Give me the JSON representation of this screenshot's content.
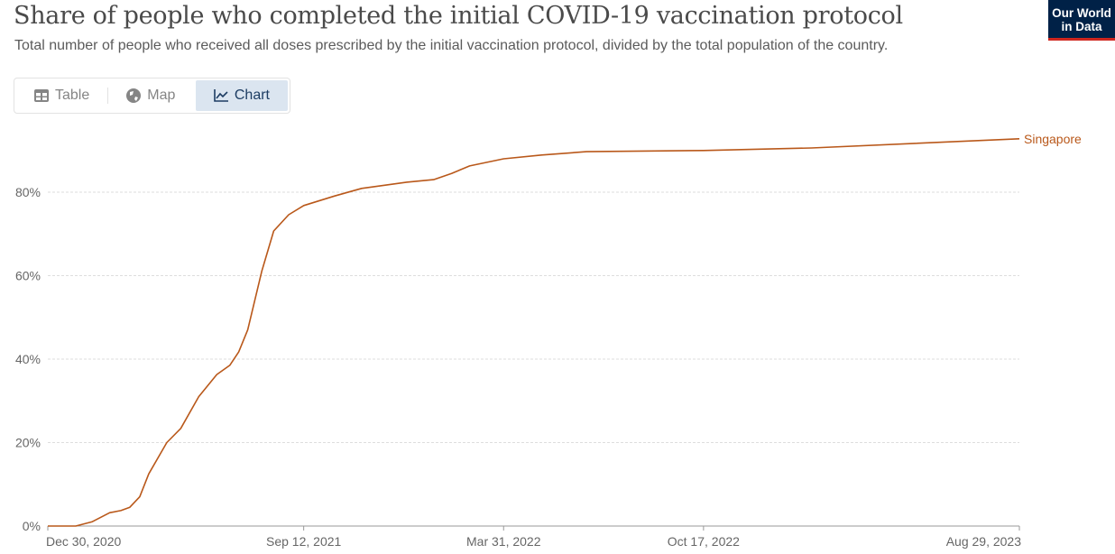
{
  "header": {
    "title": "Share of people who completed the initial COVID-19 vaccination protocol",
    "subtitle": "Total number of people who received all doses prescribed by the initial vaccination protocol, divided by the total population of the country.",
    "logo": "Our World in Data"
  },
  "tabs": [
    {
      "label": "Table",
      "icon": "table-icon"
    },
    {
      "label": "Map",
      "icon": "globe-icon"
    },
    {
      "label": "Chart",
      "icon": "line-chart-icon",
      "active": true
    }
  ],
  "chart_data": {
    "type": "line",
    "title": "",
    "xlabel": "",
    "ylabel": "",
    "ylim": [
      0,
      95
    ],
    "grid": true,
    "yticks": [
      0,
      20,
      40,
      60,
      80
    ],
    "ytick_labels": [
      "0%",
      "20%",
      "40%",
      "60%",
      "80%"
    ],
    "xticks": [
      "2020-12-30",
      "2021-09-12",
      "2022-03-31",
      "2022-10-17",
      "2023-08-29"
    ],
    "xtick_labels": [
      "Dec 30, 2020",
      "Sep 12, 2021",
      "Mar 31, 2022",
      "Oct 17, 2022",
      "Aug 29, 2023"
    ],
    "series": [
      {
        "name": "Singapore",
        "color": "#b9581a",
        "points": [
          [
            "2020-12-30",
            0
          ],
          [
            "2021-01-27",
            0
          ],
          [
            "2021-02-12",
            1
          ],
          [
            "2021-03-02",
            3.2
          ],
          [
            "2021-03-13",
            3.7
          ],
          [
            "2021-03-22",
            4.5
          ],
          [
            "2021-04-01",
            7
          ],
          [
            "2021-04-10",
            12.5
          ],
          [
            "2021-04-28",
            20
          ],
          [
            "2021-05-12",
            23.4
          ],
          [
            "2021-05-30",
            31
          ],
          [
            "2021-06-17",
            36.3
          ],
          [
            "2021-06-30",
            38.5
          ],
          [
            "2021-07-09",
            41.7
          ],
          [
            "2021-07-18",
            47
          ],
          [
            "2021-08-01",
            61
          ],
          [
            "2021-08-13",
            70.7
          ],
          [
            "2021-08-28",
            74.6
          ],
          [
            "2021-09-12",
            76.8
          ],
          [
            "2021-10-13",
            79.1
          ],
          [
            "2021-11-09",
            80.9
          ],
          [
            "2021-12-24",
            82.4
          ],
          [
            "2022-01-20",
            83
          ],
          [
            "2022-02-07",
            84.5
          ],
          [
            "2022-02-25",
            86.3
          ],
          [
            "2022-03-31",
            88
          ],
          [
            "2022-05-08",
            88.9
          ],
          [
            "2022-06-22",
            89.7
          ],
          [
            "2022-10-17",
            90
          ],
          [
            "2023-02-02",
            90.6
          ],
          [
            "2023-08-29",
            92.8
          ]
        ]
      }
    ]
  }
}
